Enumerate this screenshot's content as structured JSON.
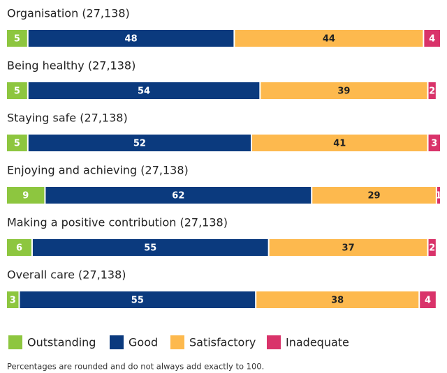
{
  "chart_data": {
    "type": "stacked-bar-horizontal",
    "categories": [
      "Organisation (27,138)",
      "Being healthy (27,138)",
      "Staying safe (27,138)",
      "Enjoying and achieving (27,138)",
      "Making a positive contribution (27,138)",
      "Overall care (27,138)"
    ],
    "series": [
      {
        "name": "Outstanding",
        "color": "#8dc63f",
        "values": [
          5,
          5,
          5,
          9,
          6,
          3
        ]
      },
      {
        "name": "Good",
        "color": "#0b3a7e",
        "values": [
          48,
          54,
          52,
          62,
          55,
          55
        ]
      },
      {
        "name": "Satisfactory",
        "color": "#fdb94e",
        "values": [
          44,
          39,
          41,
          29,
          37,
          38
        ]
      },
      {
        "name": "Inadequate",
        "color": "#d9336a",
        "values": [
          4,
          2,
          3,
          1,
          2,
          4
        ]
      }
    ],
    "note": "Percentages are rounded and do not always add exactly to 100."
  }
}
